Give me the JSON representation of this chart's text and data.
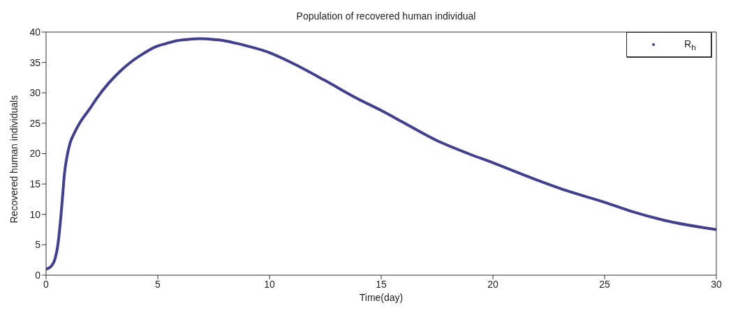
{
  "chart_data": {
    "type": "line",
    "title": "Population of recovered human individual",
    "xlabel": "Time(day)",
    "ylabel": "Recovered human individuals",
    "xlim": [
      0,
      30
    ],
    "xticks": [
      0,
      5,
      10,
      15,
      20,
      25,
      30
    ],
    "ylim": [
      0,
      40
    ],
    "yticks": [
      0,
      5,
      10,
      15,
      20,
      25,
      30,
      35,
      40
    ],
    "grid": false,
    "legend": "top right",
    "marker": "none",
    "line_style": "solid",
    "series": [
      {
        "name": "R$_{h}$",
        "color": "#3f3f97",
        "x": [
          0,
          0.21,
          0.41,
          0.52,
          0.62,
          0.72,
          0.82,
          0.93,
          1.08,
          1.24,
          1.55,
          1.96,
          2.27,
          2.78,
          3.3,
          3.81,
          4.33,
          4.85,
          5.36,
          5.88,
          6.39,
          6.9,
          7.42,
          7.94,
          8.45,
          10,
          11.02,
          12.5,
          13.96,
          15,
          16,
          17.46,
          18.9,
          20,
          21.8,
          23.3,
          25,
          26.2,
          27.7,
          30
        ],
        "values": [
          1,
          1.4,
          2.8,
          4.8,
          8,
          12.1,
          16.6,
          19.4,
          21.8,
          23.2,
          25.3,
          27.4,
          29.1,
          31.5,
          33.5,
          35.1,
          36.4,
          37.5,
          38.1,
          38.6,
          38.8,
          38.9,
          38.8,
          38.6,
          38.2,
          36.6,
          34.9,
          32,
          29,
          27.1,
          25.1,
          22.2,
          20,
          18.5,
          15.9,
          13.9,
          12,
          10.5,
          9,
          7.5
        ]
      }
    ]
  }
}
